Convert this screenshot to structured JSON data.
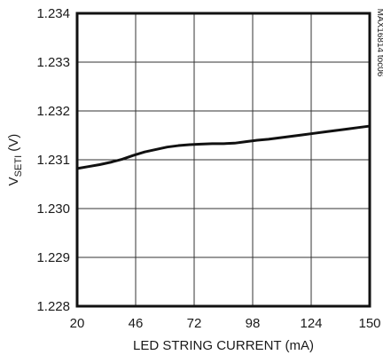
{
  "chart_data": {
    "type": "line",
    "title": "",
    "xlabel": "LED STRING CURRENT (mA)",
    "ylabel": {
      "prefix": "V",
      "subscript": "SETI",
      "suffix": " (V)"
    },
    "xlim": [
      20,
      150
    ],
    "ylim": [
      1.228,
      1.234
    ],
    "x_ticks": [
      20,
      46,
      72,
      98,
      124,
      150
    ],
    "x_tick_labels": [
      "20",
      "46",
      "72",
      "98",
      "124",
      "150"
    ],
    "y_ticks": [
      1.228,
      1.229,
      1.23,
      1.231,
      1.232,
      1.233,
      1.234
    ],
    "y_tick_labels": [
      "1.228",
      "1.229",
      "1.230",
      "1.231",
      "1.232",
      "1.233",
      "1.234"
    ],
    "grid": true,
    "legend": "none",
    "annotation": "MAX16814 toc06",
    "series": [
      {
        "color": "#111111",
        "x": [
          20,
          25,
          30,
          35,
          40,
          45,
          50,
          55,
          60,
          65,
          70,
          75,
          80,
          85,
          90,
          95,
          100,
          105,
          110,
          115,
          120,
          125,
          130,
          135,
          140,
          145,
          150
        ],
        "y": [
          1.23082,
          1.23086,
          1.2309,
          1.23095,
          1.23101,
          1.23109,
          1.23116,
          1.23121,
          1.23126,
          1.23129,
          1.23131,
          1.23132,
          1.23133,
          1.23133,
          1.23134,
          1.23137,
          1.2314,
          1.23142,
          1.23145,
          1.23148,
          1.23151,
          1.23154,
          1.23157,
          1.2316,
          1.23163,
          1.23166,
          1.23169
        ]
      }
    ]
  }
}
